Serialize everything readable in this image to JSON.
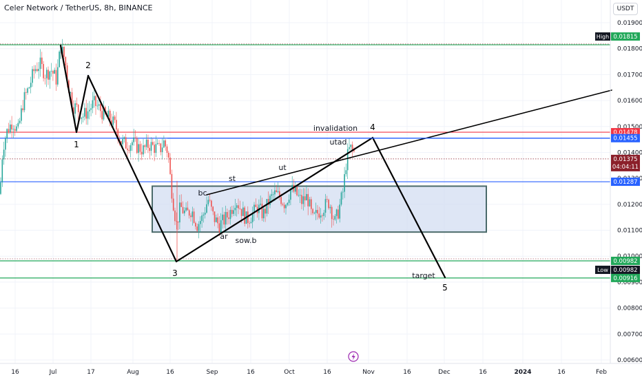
{
  "header": {
    "title": "Celer Network / TetherUS, 8h, BINANCE",
    "currency_button": "USDT"
  },
  "chart_data": {
    "type": "candlestick",
    "symbol": "Celer Network / TetherUS",
    "interval": "8h",
    "exchange": "BINANCE",
    "y_ticks": [
      "0.01900",
      "0.01800",
      "0.01700",
      "0.01600",
      "0.01500",
      "0.01400",
      "0.01300",
      "0.01200",
      "0.01100",
      "0.01000",
      "0.00900",
      "0.00800",
      "0.00700",
      "0.00600"
    ],
    "ylim": [
      0.0059,
      0.0195
    ],
    "x_ticks": [
      "16",
      "Jul",
      "17",
      "Aug",
      "16",
      "Sep",
      "16",
      "Oct",
      "16",
      "Nov",
      "16",
      "Dec",
      "16",
      "2024",
      "16",
      "Feb"
    ],
    "price_badges": [
      {
        "label": "High",
        "value": "0.01815",
        "color": "#22a85a"
      },
      {
        "value": "0.01478",
        "color": "#f23645"
      },
      {
        "value": "0.01455",
        "color": "#2962ff"
      },
      {
        "value": "0.01375",
        "time": "04:04:11",
        "color": "#8b1f2a"
      },
      {
        "value": "0.01287",
        "color": "#2962ff"
      },
      {
        "value": "0.00982",
        "color": "#22a85a"
      },
      {
        "label": "Low",
        "value": "0.00982"
      },
      {
        "value": "0.00916",
        "color": "#22a85a"
      }
    ],
    "horizontal_levels": [
      {
        "price": 0.01815,
        "color": "#22a85a"
      },
      {
        "price": 0.01478,
        "color": "#f23645"
      },
      {
        "price": 0.01455,
        "color": "#2962ff"
      },
      {
        "price": 0.01375,
        "color": "#8b1f2a",
        "style": "dotted"
      },
      {
        "price": 0.01287,
        "color": "#2962ff"
      },
      {
        "price": 0.00982,
        "color": "#22a85a"
      },
      {
        "price": 0.00916,
        "color": "#22a85a"
      }
    ],
    "range_box": {
      "top": 0.0127,
      "bottom": 0.01093
    },
    "wave_labels": [
      "1",
      "2",
      "3",
      "4",
      "5"
    ],
    "annotations": [
      "invalidation",
      "utad",
      "ut",
      "st",
      "bc",
      "ar",
      "sow.b",
      "target"
    ],
    "colors": {
      "up": "#26a69a",
      "down": "#ef5350",
      "box": "#4a6a6a"
    }
  }
}
